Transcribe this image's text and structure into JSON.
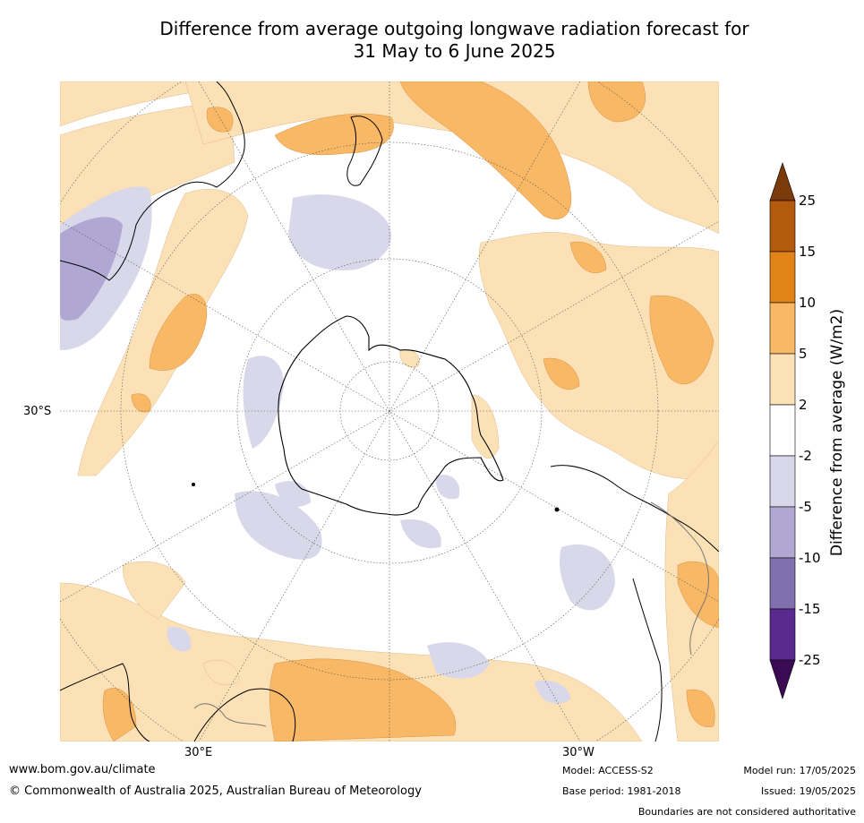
{
  "title_line1": "Difference from average outgoing longwave radiation forecast for",
  "title_line2": "31 May to 6 June 2025",
  "map": {
    "lat_label": "30°S",
    "lon_labels": [
      "30°E",
      "30°W"
    ]
  },
  "colorbar": {
    "title": "Difference from average (W/m2)",
    "levels": [
      "25",
      "15",
      "10",
      "5",
      "2",
      "-2",
      "-5",
      "-10",
      "-15",
      "-25"
    ],
    "colors": {
      "above_25": "#7a3a0a",
      "b15_25": "#b25a0e",
      "b10_15": "#e08418",
      "b5_10": "#f9b865",
      "b2_5": "#fde1b6",
      "bm2_2": "#ffffff",
      "bm5_m2": "#d8d8ea",
      "bm10_m5": "#b0a8d2",
      "bm15_m10": "#8070b0",
      "bm25_m15": "#5a2a90",
      "below_m25": "#3b0a55"
    }
  },
  "footer": {
    "url": "www.bom.gov.au/climate",
    "copyright": "© Commonwealth of Australia 2025, Australian Bureau of Meteorology",
    "model": "Model: ACCESS-S2",
    "base_period": "Base period: 1981-2018",
    "model_run": "Model run: 17/05/2025",
    "issued": "Issued: 19/05/2025",
    "disclaimer": "Boundaries are not considered authoritative"
  }
}
